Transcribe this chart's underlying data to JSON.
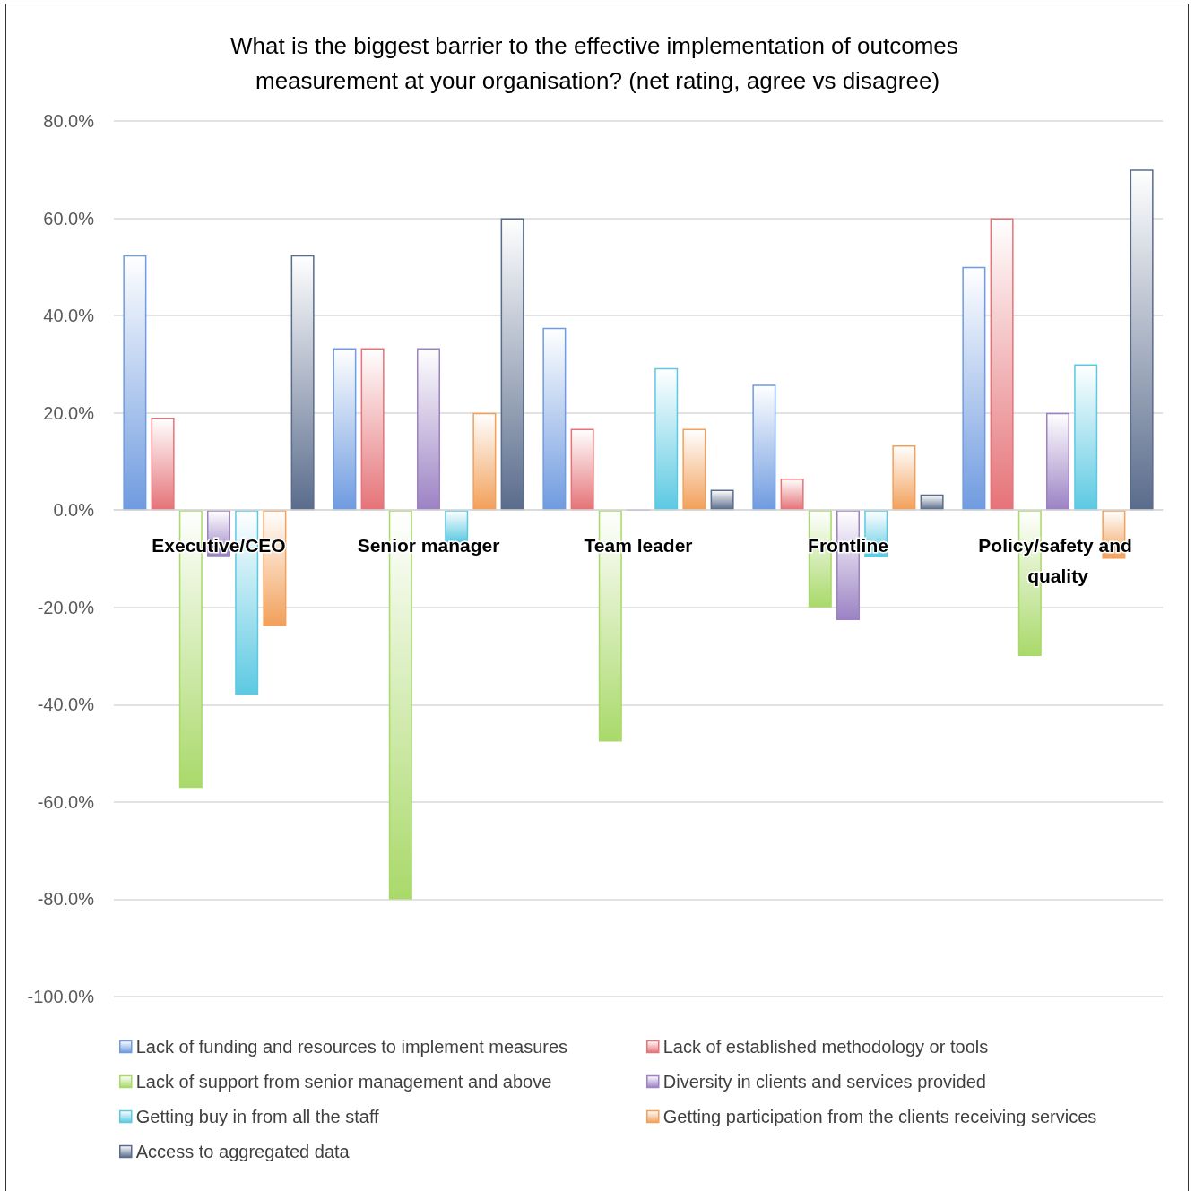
{
  "chart_data": {
    "type": "bar",
    "title": "What is the biggest barrier to the effective implementation of outcomes measurement at your organisation? (net rating, agree vs disagree)",
    "categories": [
      "Executive/CEO",
      "Senior manager",
      "Team leader",
      "Frontline",
      "Policy/safety and quality"
    ],
    "series": [
      {
        "name": "Lack of funding and resources to implement measures",
        "color": "#6f9be0",
        "values": [
          52.4,
          33.3,
          37.5,
          25.8,
          50
        ]
      },
      {
        "name": "Lack of established methodology or tools",
        "color": "#e57378",
        "values": [
          19.0,
          33.3,
          16.7,
          6.5,
          60
        ]
      },
      {
        "name": "Lack of support from senior management and above",
        "color": "#a9d96a",
        "values": [
          -57.1,
          -80,
          -47.6,
          -20,
          -30
        ]
      },
      {
        "name": "Diversity in clients and services provided",
        "color": "#9c82c4",
        "values": [
          -9.5,
          33.3,
          0,
          -22.6,
          20
        ]
      },
      {
        "name": "Getting buy in from all the staff",
        "color": "#5cc9e2",
        "values": [
          -38.0,
          -6.7,
          29.2,
          -9.7,
          30
        ]
      },
      {
        "name": "Getting participation from the clients receiving services",
        "color": "#f2a05a",
        "values": [
          -23.8,
          20,
          16.7,
          13.3,
          -10
        ]
      },
      {
        "name": "Access to aggregated data",
        "color": "#5a6c8c",
        "values": [
          52.4,
          60,
          4.2,
          3.2,
          70
        ]
      }
    ],
    "ylim": [
      -100,
      80
    ],
    "yticks": [
      {
        "value": -100,
        "label": "-100.0%"
      },
      {
        "value": -80,
        "label": "-80.0%"
      },
      {
        "value": -60,
        "label": "-60.0%"
      },
      {
        "value": -40,
        "label": "-40.0%"
      },
      {
        "value": -20,
        "label": "-20.0%"
      },
      {
        "value": 0,
        "label": "0.0%"
      },
      {
        "value": 20,
        "label": "20.0%"
      },
      {
        "value": 40,
        "label": "40.0%"
      },
      {
        "value": 60,
        "label": "60.0%"
      },
      {
        "value": 80,
        "label": "80.0%"
      }
    ],
    "grid": "y",
    "legend": "bottom"
  }
}
